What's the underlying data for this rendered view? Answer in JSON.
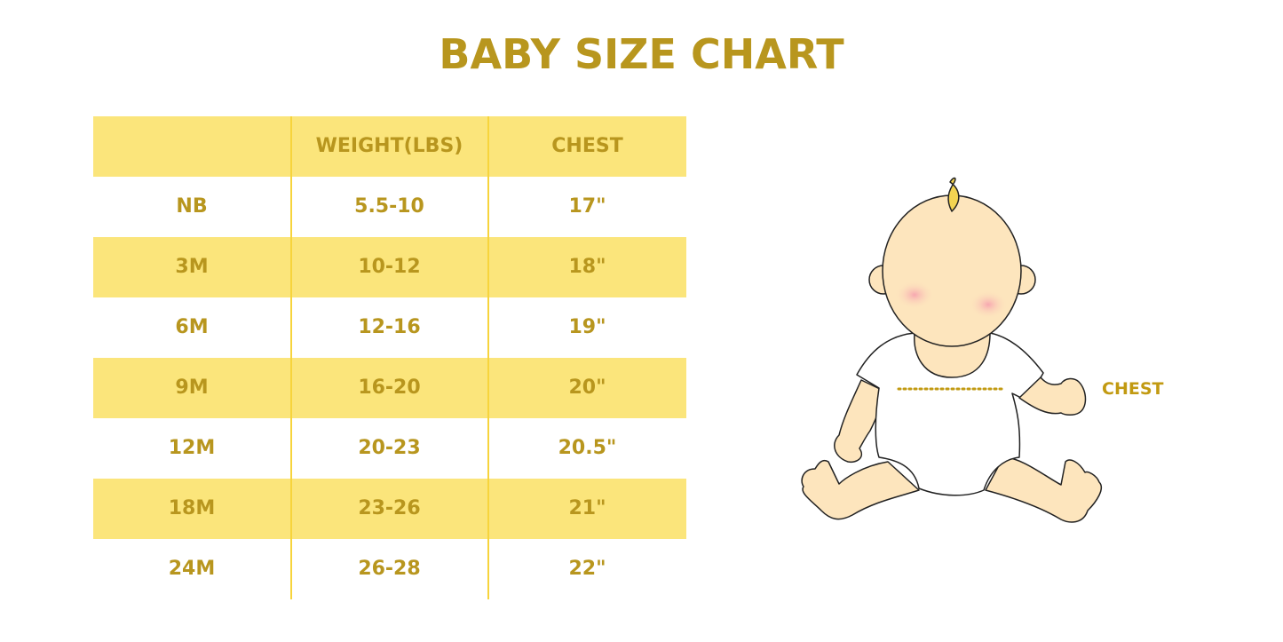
{
  "title": "BABY SIZE CHART",
  "table": {
    "headers": [
      "",
      "WEIGHT(LBS)",
      "CHEST"
    ],
    "rows": [
      [
        "NB",
        "5.5-10",
        "17\""
      ],
      [
        "3M",
        "10-12",
        "18\""
      ],
      [
        "6M",
        "12-16",
        "19\""
      ],
      [
        "9M",
        "16-20",
        "20\""
      ],
      [
        "12M",
        "20-23",
        "20.5\""
      ],
      [
        "18M",
        "23-26",
        "21\""
      ],
      [
        "24M",
        "26-28",
        "22\""
      ]
    ]
  },
  "illustration": {
    "label": "CHEST"
  },
  "colors": {
    "text": "#b8961e",
    "band": "#fbe57b",
    "divider": "#f7d43c",
    "skin": "#fde5bd"
  }
}
